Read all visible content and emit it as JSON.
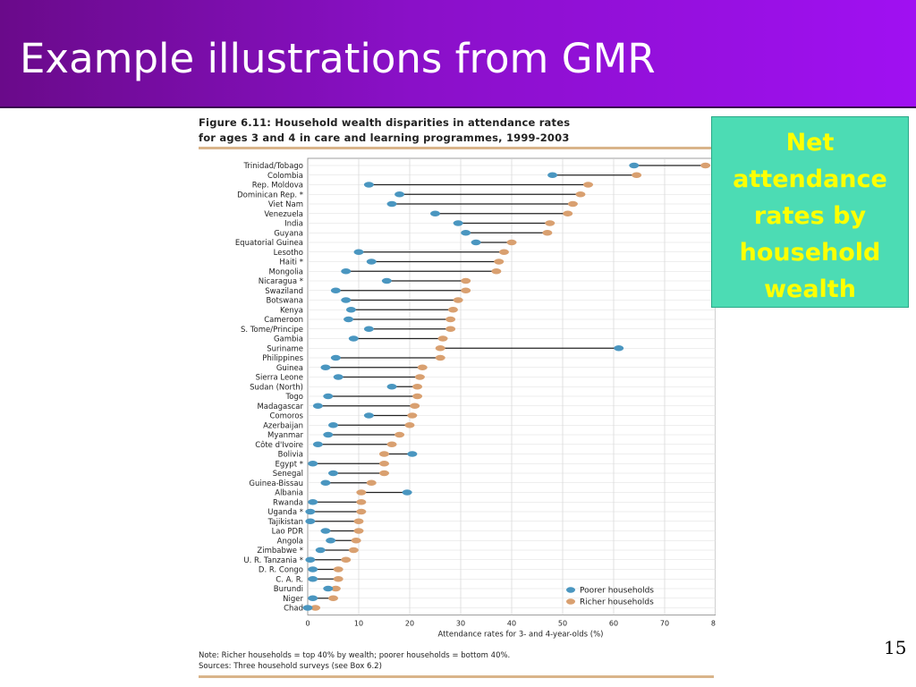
{
  "slide": {
    "title": "Example illustrations from GMR",
    "callout": "Net attendance rates by household wealth",
    "page_number": "15",
    "colors": {
      "title_bar": "#8a10c8",
      "callout_bg": "#4cdcb4",
      "callout_text": "#ffff00"
    }
  },
  "figure": {
    "title_line1": "Figure 6.11: Household wealth disparities in attendance rates",
    "title_line2": "for ages 3 and 4 in care and learning programmes, 1999-2003",
    "note": "Note: Richer households = top 40% by wealth; poorer households = bottom 40%.",
    "sources": "Sources: Three household surveys (see Box 6.2)"
  },
  "chart_data": {
    "type": "dot-range",
    "xlabel": "Attendance rates for 3- and 4-year-olds (%)",
    "xlim": [
      0,
      80
    ],
    "xticks": [
      0,
      10,
      20,
      30,
      40,
      50,
      60,
      70,
      80
    ],
    "grid": true,
    "legend": {
      "position": "bottom-right",
      "entries": [
        "Poorer households",
        "Richer households"
      ]
    },
    "series_colors": {
      "Poorer households": "#4a96c0",
      "Richer households": "#d9a070"
    },
    "categories": [
      "Trinidad/Tobago",
      "Colombia",
      "Rep. Moldova",
      "Dominican Rep. *",
      "Viet Nam",
      "Venezuela",
      "India",
      "Guyana",
      "Equatorial Guinea",
      "Lesotho",
      "Haiti *",
      "Mongolia",
      "Nicaragua *",
      "Swaziland",
      "Botswana",
      "Kenya",
      "Cameroon",
      "S. Tome/Principe",
      "Gambia",
      "Suriname",
      "Philippines",
      "Guinea",
      "Sierra Leone",
      "Sudan (North)",
      "Togo",
      "Madagascar",
      "Comoros",
      "Azerbaijan",
      "Myanmar",
      "Côte d'Ivoire",
      "Bolivia",
      "Egypt *",
      "Senegal",
      "Guinea-Bissau",
      "Albania",
      "Rwanda",
      "Uganda *",
      "Tajikistan",
      "Lao PDR",
      "Angola",
      "Zimbabwe *",
      "U. R. Tanzania *",
      "D. R. Congo",
      "C. A. R.",
      "Burundi",
      "Niger",
      "Chad"
    ],
    "series": [
      {
        "name": "Poorer households",
        "values": [
          64,
          48,
          12,
          18,
          16.5,
          25,
          29.5,
          31,
          33,
          10,
          12.5,
          7.5,
          15.5,
          5.5,
          7.5,
          8.5,
          8,
          12,
          9,
          61,
          5.5,
          3.5,
          6,
          16.5,
          4,
          2,
          12,
          5,
          4,
          2,
          20.5,
          1,
          5,
          3.5,
          19.5,
          1,
          0.5,
          0.5,
          3.5,
          4.5,
          2.5,
          0.5,
          1,
          1,
          4,
          1,
          0
        ]
      },
      {
        "name": "Richer households",
        "values": [
          78,
          64.5,
          55,
          53.5,
          52,
          51,
          47.5,
          47,
          40,
          38.5,
          37.5,
          37,
          31,
          31,
          29.5,
          28.5,
          28,
          28,
          26.5,
          26,
          26,
          22.5,
          22,
          21.5,
          21.5,
          21,
          20.5,
          20,
          18,
          16.5,
          15,
          15,
          15,
          12.5,
          10.5,
          10.5,
          10.5,
          10,
          10,
          9.5,
          9,
          7.5,
          6,
          6,
          5.5,
          5,
          1.5
        ]
      }
    ]
  }
}
